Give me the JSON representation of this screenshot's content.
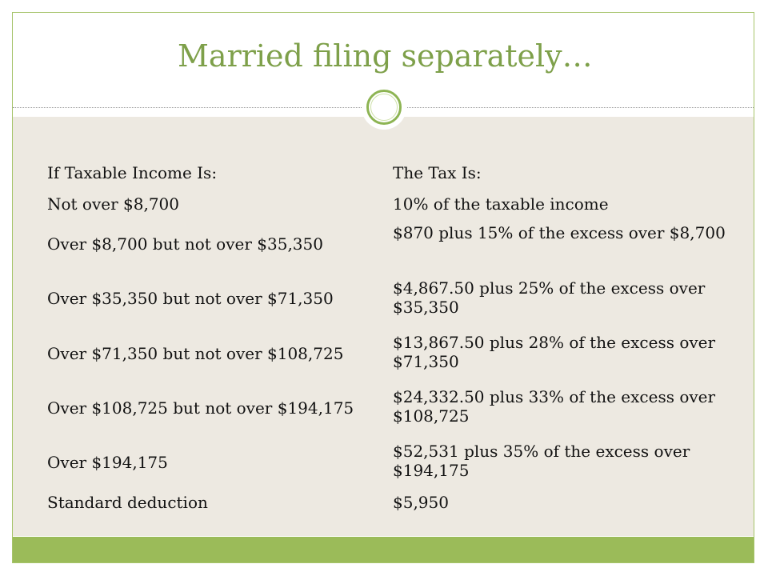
{
  "slide": {
    "title": "Married filing separately…",
    "header_row": {
      "condition": "If Taxable Income Is:",
      "tax": "The Tax Is:"
    },
    "rows": [
      {
        "condition": "Not over $8,700",
        "tax": "10% of the taxable income"
      },
      {
        "condition": "Over $8,700 but not over $35,350",
        "tax": "$870 plus 15% of the excess over $8,700"
      },
      {
        "condition": "Over $35,350 but not over $71,350",
        "tax": "$4,867.50 plus 25% of the excess over $35,350"
      },
      {
        "condition": "Over $71,350 but not over $108,725",
        "tax": "$13,867.50 plus 28% of the excess over $71,350"
      },
      {
        "condition": "Over $108,725 but not over $194,175",
        "tax": "$24,332.50 plus 33% of the excess over $108,725"
      },
      {
        "condition": "Over $194,175",
        "tax": "$52,531 plus 35% of the excess over $194,175"
      },
      {
        "condition": "Standard deduction",
        "tax": "$5,950"
      }
    ]
  },
  "colors": {
    "accent": "#9bbb59",
    "title": "#7ea04a",
    "panel": "#ede9e1"
  }
}
